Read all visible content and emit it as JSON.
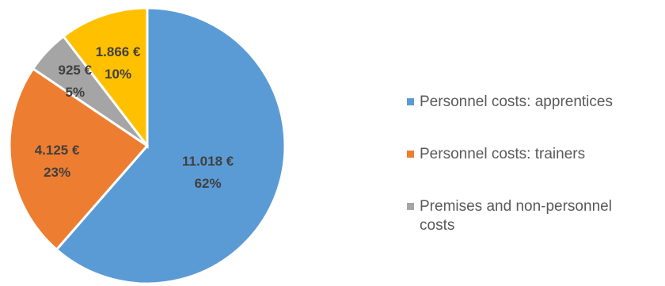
{
  "chart_data": {
    "type": "pie",
    "start_angle_deg": 0,
    "direction": "clockwise",
    "legend_position": "right",
    "slices": [
      {
        "name": "Personnel costs: apprentices",
        "value": 11018,
        "value_label": "11.018 €",
        "percent_label": "62%",
        "color": "#5b9bd5",
        "legend": [
          "Personnel costs: apprentices"
        ]
      },
      {
        "name": "Personnel costs: trainers",
        "value": 4125,
        "value_label": "4.125 €",
        "percent_label": "23%",
        "color": "#ed7d31",
        "legend": [
          "Personnel costs: trainers"
        ]
      },
      {
        "name": "Premises and non-personnel costs",
        "value": 925,
        "value_label": "925 €",
        "percent_label": "5%",
        "color": "#a5a5a5",
        "legend": [
          "Premises and non-personnel",
          "costs"
        ]
      },
      {
        "name": "",
        "value": 1866,
        "value_label": "1.866 €",
        "percent_label": "10%",
        "color": "#ffc000",
        "legend": []
      }
    ]
  }
}
